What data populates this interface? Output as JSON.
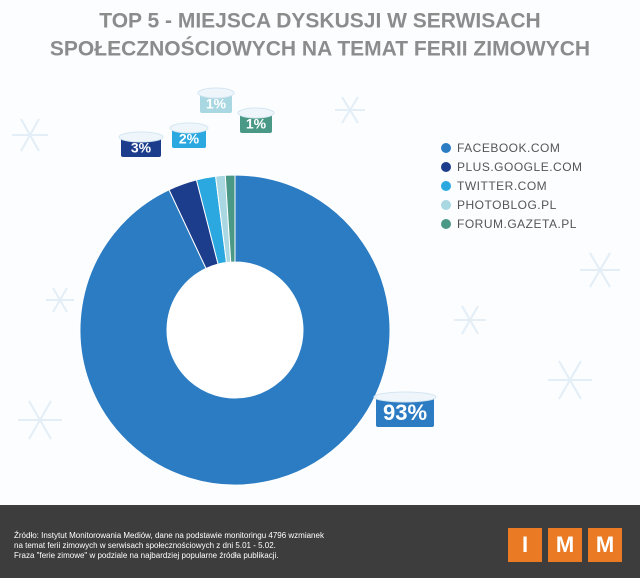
{
  "chart_data": {
    "type": "donut",
    "title": [
      "TOP 5 - MIEJSCA DYSKUSJI W SERWISACH",
      "SPOŁECZNOŚCIOWYCH NA TEMAT FERII ZIMOWYCH"
    ],
    "categories": [
      "FACEBOOK.COM",
      "PLUS.GOOGLE.COM",
      "TWITTER.COM",
      "PHOTOBLOG.PL",
      "FORUM.GAZETA.PL"
    ],
    "values": [
      93,
      3,
      2,
      1,
      1
    ],
    "value_labels": [
      "93%",
      "3%",
      "2%",
      "1%",
      "1%"
    ],
    "colors": [
      "#2b7cc3",
      "#1c3c8c",
      "#2aa8df",
      "#a9d7e2",
      "#4a9886"
    ],
    "legend": "right"
  },
  "footer": {
    "source": [
      "Źródło: Instytut Monitorowania Mediów, dane na podstawie monitoringu 4796 wzmianek",
      "na temat ferii zimowych w serwisach społecznościowych z dni 5.01 - 5.02.",
      "Fraza \"ferie zimowe\" w podziale na najbardziej popularne źródła publikacji."
    ],
    "logo": [
      "I",
      "M",
      "M"
    ]
  }
}
